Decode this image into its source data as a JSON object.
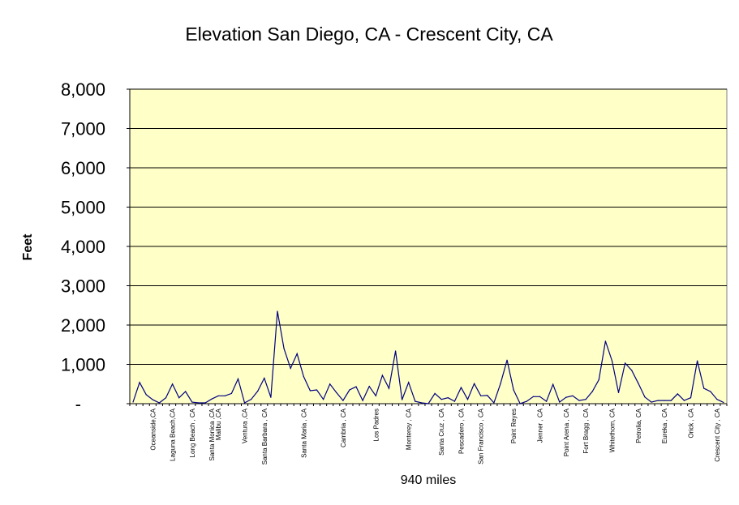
{
  "chart_data": {
    "type": "line",
    "title": "Elevation San Diego, CA - Crescent City, CA",
    "xlabel": "940 miles",
    "ylabel": "Feet",
    "ylim": [
      0,
      8000
    ],
    "yticks": [
      0,
      1000,
      2000,
      3000,
      4000,
      5000,
      6000,
      7000,
      8000
    ],
    "ytick_labels": [
      "-",
      "1,000",
      "2,000",
      "3,000",
      "4,000",
      "5,000",
      "6,000",
      "7,000",
      "8,000"
    ],
    "grid": "horizontal",
    "colors": {
      "plot_background": "#FFFFC8",
      "line": "#000080",
      "grid": "#000000"
    },
    "categories": [
      "",
      "",
      "",
      "Oceanside,CA",
      "",
      "",
      "Laguna Beach,CA",
      "",
      "",
      "Long  Beach , CA",
      "",
      "",
      "Santa Monica ,CA",
      "Malibu ,CA",
      "",
      "",
      "",
      "Ventura ,CA",
      "",
      "",
      "Santa Barbara , CA",
      "",
      "",
      "",
      "",
      "",
      "Santa Maria , CA",
      "",
      "",
      "",
      "",
      "",
      "Cambria , CA",
      "",
      "",
      "",
      "",
      "Los Padres",
      "",
      "",
      "",
      "",
      "Monterey , CA",
      "",
      "",
      "",
      "",
      "Santa Cruz , CA",
      "",
      "",
      "Pescadero , CA",
      "",
      "",
      "San Francisco , CA",
      "",
      "",
      "",
      "",
      "Point Reyes",
      "",
      "",
      "",
      "Jenner , CA",
      "",
      "",
      "",
      "Point Arena , CA",
      "",
      "",
      "Fort Bragg , CA",
      "",
      "",
      "",
      "Whitethorn, CA",
      "",
      "",
      "",
      "Petrolia, CA",
      "",
      "",
      "",
      "Eureka , CA",
      "",
      "",
      "",
      "Orick , CA",
      "",
      "",
      "",
      "Crescent  City , CA",
      ""
    ],
    "values": [
      40,
      540,
      230,
      100,
      20,
      150,
      500,
      150,
      310,
      40,
      20,
      20,
      120,
      200,
      200,
      260,
      630,
      20,
      110,
      320,
      650,
      160,
      2350,
      1400,
      900,
      1270,
      690,
      330,
      350,
      110,
      500,
      280,
      80,
      350,
      430,
      80,
      440,
      200,
      720,
      390,
      1340,
      100,
      540,
      60,
      20,
      0,
      260,
      110,
      150,
      60,
      410,
      110,
      510,
      200,
      210,
      20,
      510,
      1110,
      350,
      0,
      60,
      180,
      180,
      60,
      490,
      40,
      160,
      200,
      80,
      110,
      310,
      610,
      1590,
      1090,
      280,
      1030,
      850,
      520,
      170,
      40,
      80,
      80,
      80,
      250,
      80,
      150,
      1090,
      390,
      310,
      110,
      30
    ]
  }
}
